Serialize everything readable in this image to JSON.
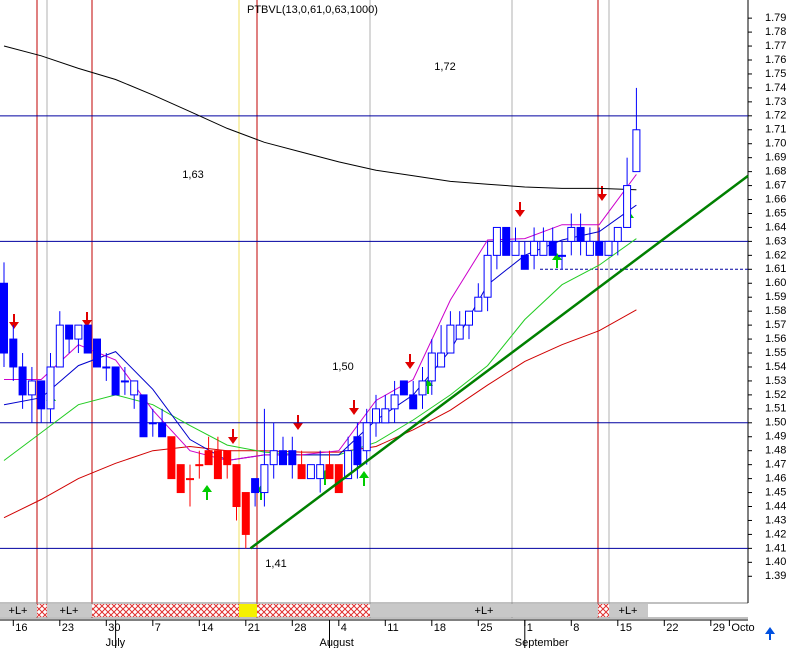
{
  "chart_data": {
    "type": "candlestick",
    "title": "PTBVL(13,0,61,0,63,1000)",
    "ylim": [
      1.373,
      1.803
    ],
    "yticks": [
      1.39,
      {
        "value": 1.4,
        "label": "1.40"
      },
      1.41,
      1.42,
      1.43,
      1.44,
      1.45,
      1.46,
      1.47,
      1.48,
      1.49,
      {
        "value": 1.5,
        "label": "1.50"
      },
      1.51,
      1.52,
      1.53,
      1.54,
      1.55,
      1.56,
      1.57,
      1.58,
      1.59,
      {
        "value": 1.6,
        "label": "1.60"
      },
      1.61,
      1.62,
      1.63,
      1.64,
      1.65,
      1.66,
      1.67,
      1.68,
      1.69,
      {
        "value": 1.7,
        "label": "1.70"
      },
      1.71,
      1.72,
      1.73,
      1.74,
      1.75,
      1.76,
      1.77,
      1.78,
      1.79
    ],
    "categories": [
      null,
      "16",
      null,
      null,
      null,
      null,
      "23",
      null,
      null,
      null,
      null,
      "30",
      null,
      null,
      null,
      null,
      "7",
      null,
      null,
      null,
      null,
      "14",
      null,
      null,
      null,
      null,
      "21",
      null,
      null,
      null,
      null,
      "28",
      null,
      null,
      null,
      null,
      "4",
      null,
      null,
      null,
      null,
      "11",
      null,
      null,
      null,
      null,
      "18",
      null,
      null,
      null,
      null,
      "25",
      null,
      null,
      null,
      null,
      "1",
      null,
      null,
      null,
      null,
      "8",
      null,
      null,
      null,
      null,
      "15",
      null,
      null,
      null,
      null,
      "22",
      null,
      null,
      null,
      null,
      "29",
      null,
      "Octo",
      null,
      null,
      null
    ],
    "month_labels": [
      null,
      null,
      null,
      null,
      null,
      null,
      null,
      null,
      null,
      null,
      null,
      null,
      "July",
      null,
      null,
      null,
      null,
      null,
      null,
      null,
      null,
      null,
      null,
      null,
      null,
      null,
      null,
      null,
      null,
      null,
      null,
      null,
      null,
      null,
      null,
      "August",
      null,
      null,
      null,
      null,
      null,
      null,
      null,
      null,
      null,
      null,
      null,
      null,
      null,
      null,
      null,
      null,
      null,
      null,
      null,
      null,
      "September",
      null,
      null,
      null,
      null,
      null,
      null,
      null,
      null,
      null,
      null,
      null,
      null,
      null,
      null,
      null,
      null,
      null,
      null,
      null,
      null,
      null,
      null,
      null,
      null,
      null
    ],
    "candles": [
      {
        "o": 1.6,
        "h": 1.615,
        "l": 1.54,
        "c": 1.55,
        "color": "blue"
      },
      {
        "o": 1.56,
        "h": 1.57,
        "l": 1.53,
        "c": 1.54,
        "color": "blue"
      },
      {
        "o": 1.54,
        "h": 1.55,
        "l": 1.51,
        "c": 1.52,
        "color": "blue"
      },
      {
        "o": 1.52,
        "h": 1.54,
        "l": 1.5,
        "c": 1.53,
        "color": "hollow"
      },
      {
        "o": 1.53,
        "h": 1.53,
        "l": 1.5,
        "c": 1.51,
        "color": "blue"
      },
      {
        "o": 1.51,
        "h": 1.55,
        "l": 1.5,
        "c": 1.54,
        "color": "hollow"
      },
      {
        "o": 1.54,
        "h": 1.58,
        "l": 1.54,
        "c": 1.57,
        "color": "hollow"
      },
      {
        "o": 1.57,
        "h": 1.57,
        "l": 1.55,
        "c": 1.56,
        "color": "blue"
      },
      {
        "o": 1.56,
        "h": 1.57,
        "l": 1.55,
        "c": 1.57,
        "color": "hollow"
      },
      {
        "o": 1.57,
        "h": 1.57,
        "l": 1.55,
        "c": 1.55,
        "color": "blue"
      },
      {
        "o": 1.56,
        "h": 1.56,
        "l": 1.54,
        "c": 1.54,
        "color": "blue"
      },
      {
        "o": 1.54,
        "h": 1.55,
        "l": 1.53,
        "c": 1.54,
        "color": "hollow"
      },
      {
        "o": 1.54,
        "h": 1.54,
        "l": 1.52,
        "c": 1.52,
        "color": "blue"
      },
      {
        "o": 1.53,
        "h": 1.54,
        "l": 1.52,
        "c": 1.53,
        "color": "hollow"
      },
      {
        "o": 1.53,
        "h": 1.53,
        "l": 1.51,
        "c": 1.52,
        "color": "hollow"
      },
      {
        "o": 1.52,
        "h": 1.52,
        "l": 1.49,
        "c": 1.49,
        "color": "blue"
      },
      {
        "o": 1.5,
        "h": 1.51,
        "l": 1.49,
        "c": 1.5,
        "color": "hollow"
      },
      {
        "o": 1.5,
        "h": 1.51,
        "l": 1.49,
        "c": 1.49,
        "color": "blue"
      },
      {
        "o": 1.49,
        "h": 1.49,
        "l": 1.46,
        "c": 1.46,
        "color": "red"
      },
      {
        "o": 1.47,
        "h": 1.47,
        "l": 1.45,
        "c": 1.45,
        "color": "red"
      },
      {
        "o": 1.46,
        "h": 1.47,
        "l": 1.44,
        "c": 1.46,
        "color": "red"
      },
      {
        "o": 1.47,
        "h": 1.48,
        "l": 1.46,
        "c": 1.47,
        "color": "red"
      },
      {
        "o": 1.48,
        "h": 1.49,
        "l": 1.47,
        "c": 1.47,
        "color": "red"
      },
      {
        "o": 1.48,
        "h": 1.49,
        "l": 1.46,
        "c": 1.46,
        "color": "red"
      },
      {
        "o": 1.48,
        "h": 1.48,
        "l": 1.46,
        "c": 1.47,
        "color": "red"
      },
      {
        "o": 1.47,
        "h": 1.47,
        "l": 1.43,
        "c": 1.44,
        "color": "red"
      },
      {
        "o": 1.45,
        "h": 1.45,
        "l": 1.41,
        "c": 1.42,
        "color": "red"
      },
      {
        "o": 1.46,
        "h": 1.46,
        "l": 1.44,
        "c": 1.45,
        "color": "blue"
      },
      {
        "o": 1.45,
        "h": 1.51,
        "l": 1.44,
        "c": 1.47,
        "color": "hollow"
      },
      {
        "o": 1.47,
        "h": 1.5,
        "l": 1.46,
        "c": 1.48,
        "color": "hollow"
      },
      {
        "o": 1.48,
        "h": 1.49,
        "l": 1.47,
        "c": 1.47,
        "color": "blue"
      },
      {
        "o": 1.48,
        "h": 1.49,
        "l": 1.46,
        "c": 1.47,
        "color": "blue"
      },
      {
        "o": 1.47,
        "h": 1.48,
        "l": 1.46,
        "c": 1.46,
        "color": "red"
      },
      {
        "o": 1.46,
        "h": 1.47,
        "l": 1.46,
        "c": 1.47,
        "color": "hollow"
      },
      {
        "o": 1.46,
        "h": 1.48,
        "l": 1.45,
        "c": 1.47,
        "color": "hollow"
      },
      {
        "o": 1.47,
        "h": 1.48,
        "l": 1.46,
        "c": 1.46,
        "color": "red"
      },
      {
        "o": 1.47,
        "h": 1.47,
        "l": 1.45,
        "c": 1.45,
        "color": "red"
      },
      {
        "o": 1.46,
        "h": 1.49,
        "l": 1.46,
        "c": 1.48,
        "color": "hollow"
      },
      {
        "o": 1.49,
        "h": 1.5,
        "l": 1.46,
        "c": 1.47,
        "color": "blue"
      },
      {
        "o": 1.48,
        "h": 1.51,
        "l": 1.47,
        "c": 1.5,
        "color": "hollow"
      },
      {
        "o": 1.5,
        "h": 1.52,
        "l": 1.49,
        "c": 1.51,
        "color": "hollow"
      },
      {
        "o": 1.5,
        "h": 1.52,
        "l": 1.5,
        "c": 1.51,
        "color": "hollow"
      },
      {
        "o": 1.51,
        "h": 1.53,
        "l": 1.5,
        "c": 1.52,
        "color": "hollow"
      },
      {
        "o": 1.53,
        "h": 1.53,
        "l": 1.52,
        "c": 1.52,
        "color": "blue"
      },
      {
        "o": 1.52,
        "h": 1.53,
        "l": 1.51,
        "c": 1.51,
        "color": "blue"
      },
      {
        "o": 1.52,
        "h": 1.54,
        "l": 1.51,
        "c": 1.53,
        "color": "hollow"
      },
      {
        "o": 1.53,
        "h": 1.56,
        "l": 1.52,
        "c": 1.55,
        "color": "hollow"
      },
      {
        "o": 1.54,
        "h": 1.57,
        "l": 1.54,
        "c": 1.55,
        "color": "hollow"
      },
      {
        "o": 1.55,
        "h": 1.58,
        "l": 1.55,
        "c": 1.57,
        "color": "hollow"
      },
      {
        "o": 1.56,
        "h": 1.58,
        "l": 1.56,
        "c": 1.57,
        "color": "hollow"
      },
      {
        "o": 1.57,
        "h": 1.58,
        "l": 1.56,
        "c": 1.58,
        "color": "hollow"
      },
      {
        "o": 1.58,
        "h": 1.6,
        "l": 1.58,
        "c": 1.59,
        "color": "hollow"
      },
      {
        "o": 1.59,
        "h": 1.63,
        "l": 1.58,
        "c": 1.62,
        "color": "hollow"
      },
      {
        "o": 1.62,
        "h": 1.64,
        "l": 1.61,
        "c": 1.64,
        "color": "hollow"
      },
      {
        "o": 1.64,
        "h": 1.64,
        "l": 1.62,
        "c": 1.62,
        "color": "blue"
      },
      {
        "o": 1.62,
        "h": 1.64,
        "l": 1.62,
        "c": 1.63,
        "color": "hollow"
      },
      {
        "o": 1.62,
        "h": 1.63,
        "l": 1.61,
        "c": 1.61,
        "color": "blue"
      },
      {
        "o": 1.62,
        "h": 1.64,
        "l": 1.61,
        "c": 1.63,
        "color": "hollow"
      },
      {
        "o": 1.62,
        "h": 1.64,
        "l": 1.62,
        "c": 1.63,
        "color": "hollow"
      },
      {
        "o": 1.63,
        "h": 1.64,
        "l": 1.62,
        "c": 1.62,
        "color": "blue"
      },
      {
        "o": 1.62,
        "h": 1.63,
        "l": 1.61,
        "c": 1.62,
        "color": "hollow"
      },
      {
        "o": 1.63,
        "h": 1.65,
        "l": 1.62,
        "c": 1.64,
        "color": "hollow"
      },
      {
        "o": 1.64,
        "h": 1.65,
        "l": 1.62,
        "c": 1.63,
        "color": "blue"
      },
      {
        "o": 1.62,
        "h": 1.64,
        "l": 1.62,
        "c": 1.63,
        "color": "hollow"
      },
      {
        "o": 1.63,
        "h": 1.64,
        "l": 1.62,
        "c": 1.62,
        "color": "blue"
      },
      {
        "o": 1.62,
        "h": 1.63,
        "l": 1.62,
        "c": 1.63,
        "color": "hollow"
      },
      {
        "o": 1.63,
        "h": 1.64,
        "l": 1.62,
        "c": 1.64,
        "color": "hollow"
      },
      {
        "o": 1.64,
        "h": 1.69,
        "l": 1.64,
        "c": 1.67,
        "color": "hollow"
      },
      {
        "o": 1.68,
        "h": 1.74,
        "l": 1.68,
        "c": 1.71,
        "color": "hollow"
      }
    ],
    "series": [
      {
        "color": "#000000",
        "x": [
          0,
          4,
          8,
          12,
          16,
          20,
          24,
          28,
          32,
          36,
          40,
          44,
          48,
          52,
          56,
          60,
          64,
          68
        ],
        "values": [
          1.77,
          1.763,
          1.754,
          1.746,
          1.735,
          1.723,
          1.711,
          1.701,
          1.694,
          1.687,
          1.681,
          1.677,
          1.673,
          1.671,
          1.669,
          1.668,
          1.668,
          1.667
        ]
      },
      {
        "color": "#d00000",
        "x": [
          0,
          4,
          8,
          12,
          16,
          20,
          24,
          28,
          32,
          36,
          40,
          44,
          48,
          52,
          56,
          60,
          64,
          68
        ],
        "values": [
          1.432,
          1.445,
          1.46,
          1.471,
          1.48,
          1.483,
          1.48,
          1.48,
          1.479,
          1.479,
          1.483,
          1.495,
          1.509,
          1.527,
          1.544,
          1.556,
          1.566,
          1.581
        ]
      },
      {
        "color": "#22cc22",
        "x": [
          0,
          4,
          8,
          12,
          16,
          20,
          24,
          28,
          32,
          36,
          40,
          44,
          48,
          52,
          56,
          60,
          64,
          68
        ],
        "values": [
          1.473,
          1.493,
          1.513,
          1.52,
          1.513,
          1.498,
          1.484,
          1.479,
          1.477,
          1.477,
          1.486,
          1.502,
          1.52,
          1.541,
          1.574,
          1.599,
          1.613,
          1.632
        ]
      },
      {
        "color": "#0000cc",
        "x": [
          0,
          4,
          8,
          12,
          16,
          20,
          24,
          28,
          32,
          36,
          40,
          44,
          48,
          52,
          56,
          60,
          64,
          68
        ],
        "values": [
          1.513,
          1.518,
          1.541,
          1.551,
          1.524,
          1.488,
          1.473,
          1.477,
          1.477,
          1.477,
          1.502,
          1.52,
          1.552,
          1.599,
          1.62,
          1.631,
          1.637,
          1.656
        ]
      },
      {
        "color": "#cc00cc",
        "x": [
          0,
          4,
          8,
          12,
          16,
          20,
          24,
          28,
          32,
          36,
          40,
          44,
          48,
          52,
          56,
          60,
          64,
          68
        ],
        "values": [
          1.531,
          1.531,
          1.556,
          1.545,
          1.509,
          1.48,
          1.473,
          1.477,
          1.477,
          1.48,
          1.516,
          1.531,
          1.588,
          1.631,
          1.632,
          1.642,
          1.642,
          1.678
        ]
      }
    ],
    "trendline": {
      "color": "#008000",
      "x": [
        26.5,
        80
      ],
      "values": [
        1.41,
        1.677
      ]
    },
    "levels": [
      {
        "value": 1.72,
        "label": "1,72"
      },
      {
        "value": 1.63,
        "label": "1,63"
      },
      {
        "value": 1.5,
        "label": "1,50"
      },
      {
        "value": 1.41,
        "label": "1,41"
      }
    ],
    "dashed_level": 1.61,
    "trend_strip": [
      "+L+",
      "+L+",
      "+L+",
      "+L+"
    ]
  }
}
